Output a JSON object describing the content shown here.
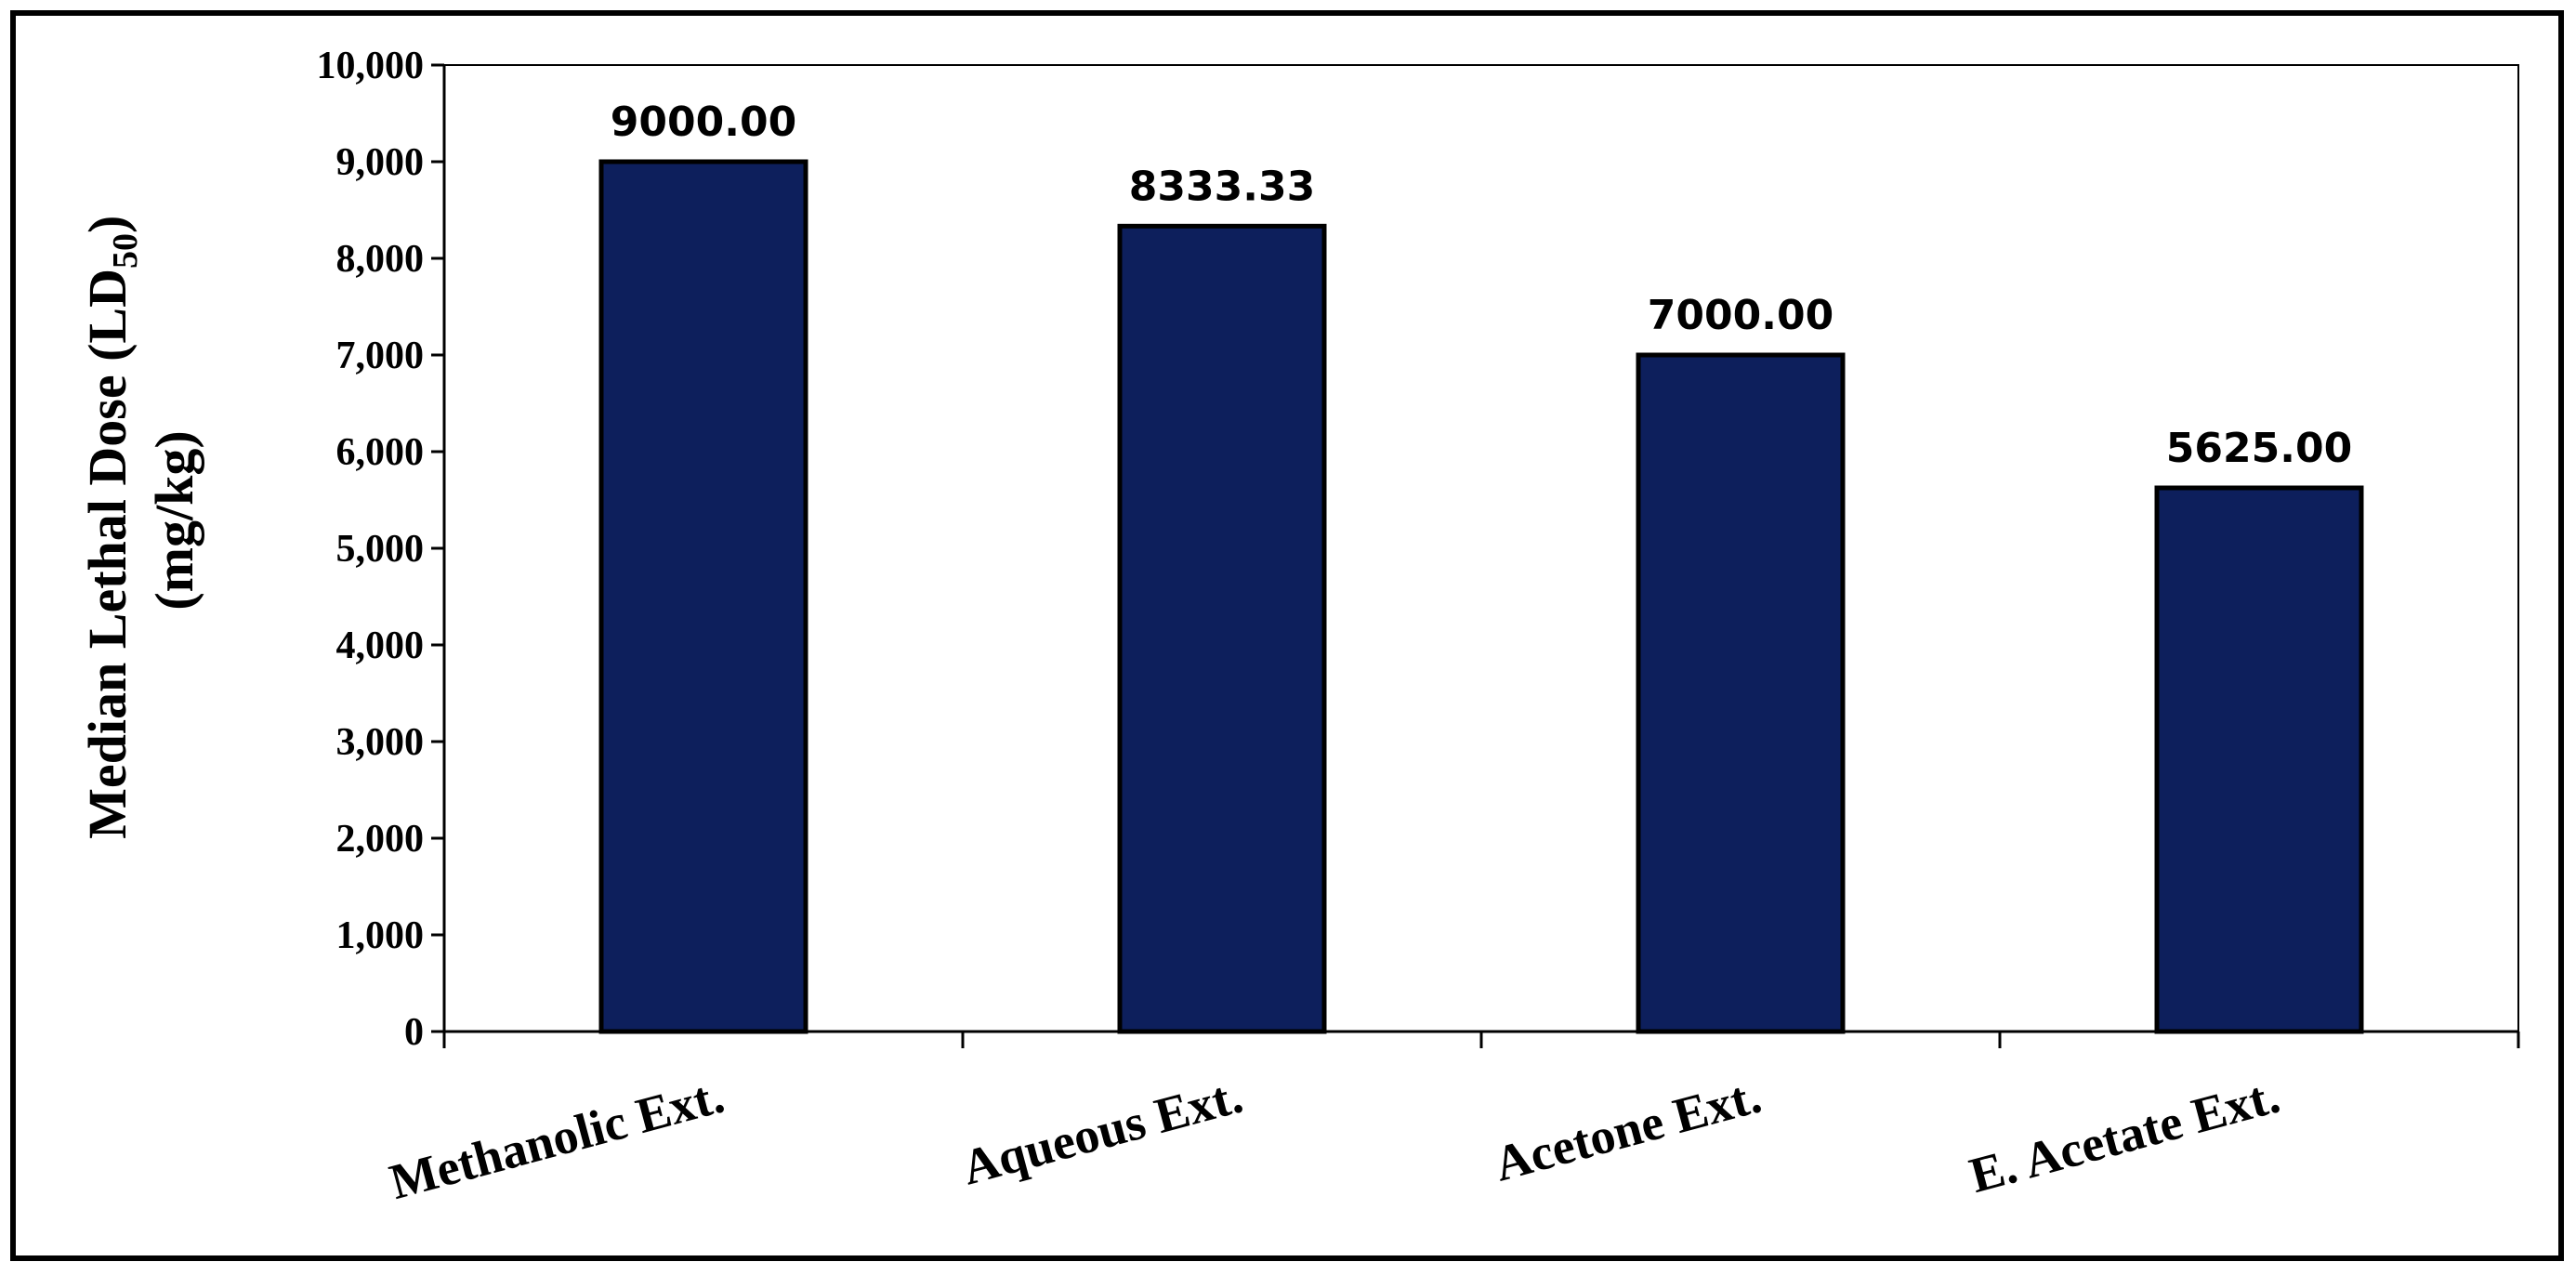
{
  "chart_data": {
    "type": "bar",
    "categories": [
      "Methanolic Ext.",
      "Aqueous Ext.",
      "Acetone Ext.",
      "E. Acetate Ext."
    ],
    "values": [
      9000,
      8333.33,
      7000,
      5625
    ],
    "value_labels": [
      "9000.00",
      "8333.33",
      "7000.00",
      "5625.00"
    ],
    "ylabel": {
      "line1_main": "Median Lethal Dose (LD",
      "line1_sub": "50",
      "line1_end": ")",
      "line2": "(mg/kg)"
    },
    "xlabel": "",
    "ylim": [
      0,
      10000
    ],
    "y_ticks": [
      "0",
      "1,000",
      "2,000",
      "3,000",
      "4,000",
      "5,000",
      "6,000",
      "7,000",
      "8,000",
      "9,000",
      "10,000"
    ],
    "grid": false,
    "legend": "none",
    "bar_color": "#0d1f5c",
    "bar_edge_color": "#000000"
  }
}
